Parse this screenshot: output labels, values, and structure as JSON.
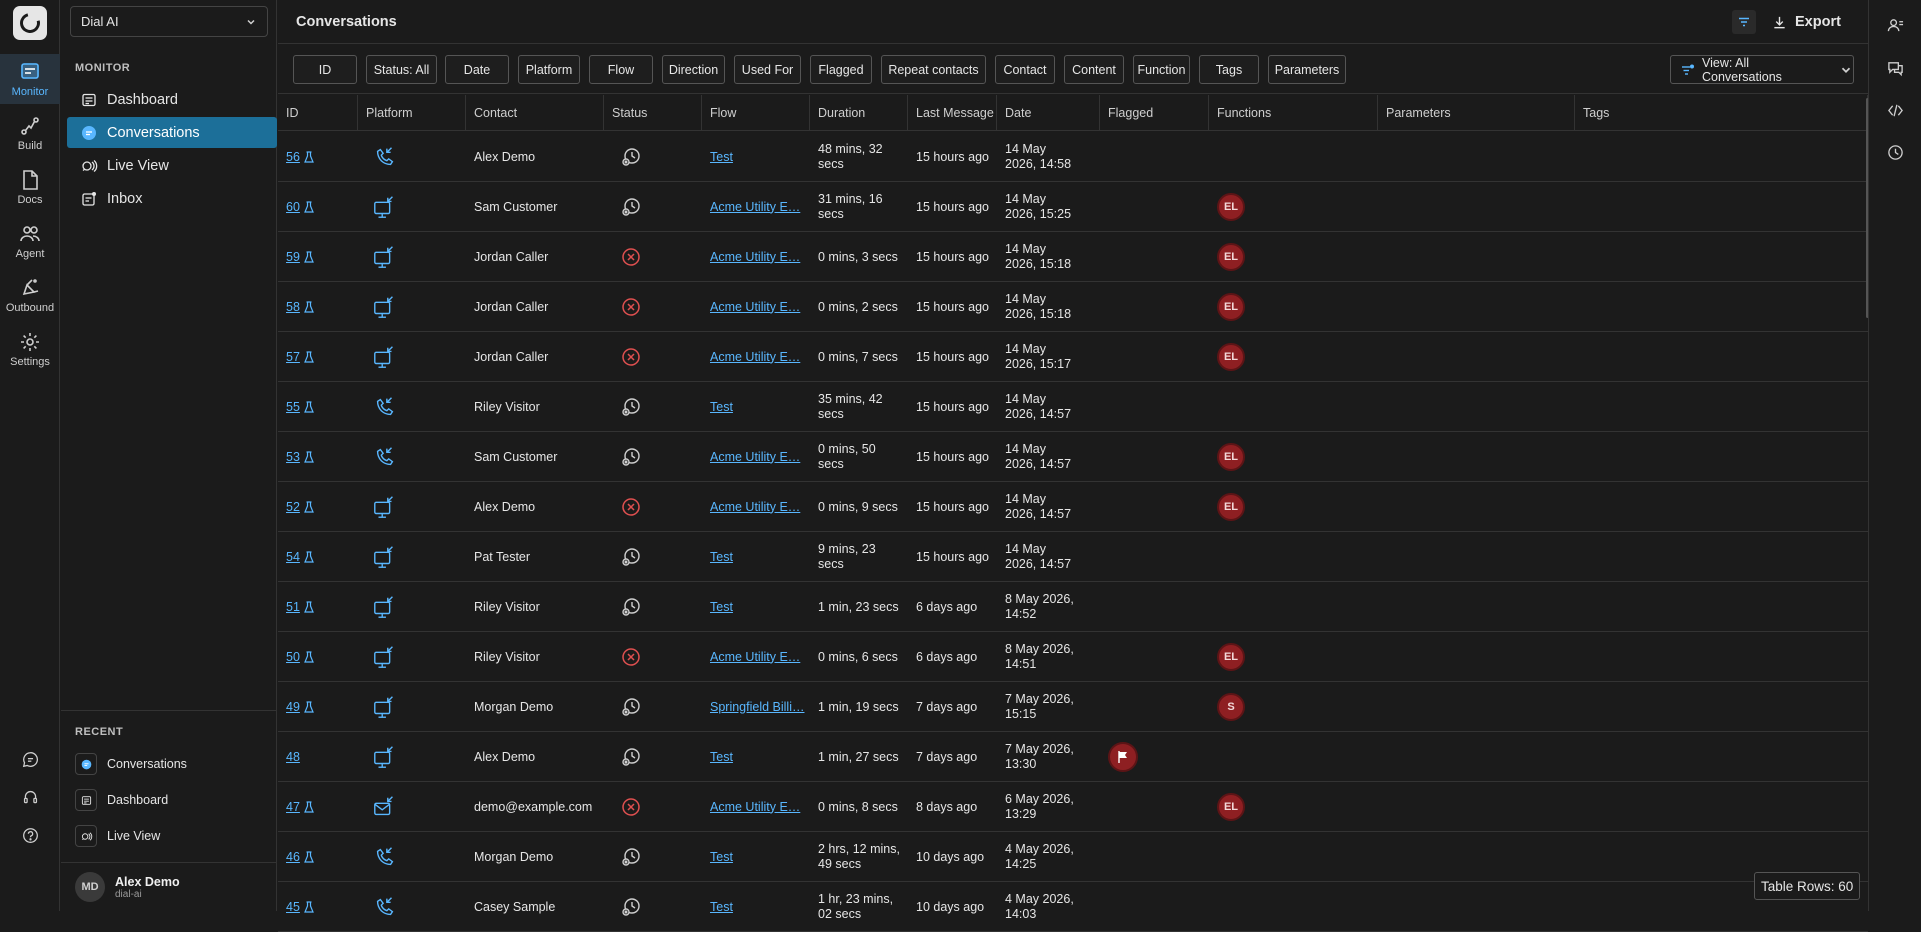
{
  "workspace": {
    "name": "Dial AI"
  },
  "rail": [
    {
      "label": "Monitor",
      "icon": "monitor-icon",
      "active": true
    },
    {
      "label": "Build",
      "icon": "build-icon"
    },
    {
      "label": "Docs",
      "icon": "docs-icon"
    },
    {
      "label": "Agent",
      "icon": "agent-icon"
    },
    {
      "label": "Outbound",
      "icon": "outbound-icon"
    },
    {
      "label": "Settings",
      "icon": "gear-icon"
    }
  ],
  "side": {
    "heading": "MONITOR",
    "nav": [
      {
        "label": "Dashboard",
        "icon": "dashboard-icon"
      },
      {
        "label": "Conversations",
        "icon": "conversations-icon",
        "active": true
      },
      {
        "label": "Live View",
        "icon": "live-view-icon"
      },
      {
        "label": "Inbox",
        "icon": "inbox-icon"
      }
    ],
    "recent_heading": "RECENT",
    "recent": [
      {
        "label": "Conversations",
        "icon": "conversations-icon"
      },
      {
        "label": "Dashboard",
        "icon": "dashboard-icon"
      },
      {
        "label": "Live View",
        "icon": "live-view-icon"
      }
    ]
  },
  "user": {
    "initials": "MD",
    "name": "Alex Demo",
    "org": "dial-ai"
  },
  "header": {
    "title": "Conversations",
    "export_label": "Export"
  },
  "filters": [
    "ID",
    "Status: All",
    "Date",
    "Platform",
    "Flow",
    "Direction",
    "Used For",
    "Flagged",
    "Repeat contacts",
    "Contact",
    "Content",
    "Function",
    "Tags",
    "Parameters"
  ],
  "view_select": "View: All Conversations",
  "columns": [
    "ID",
    "Platform",
    "Contact",
    "Status",
    "Flow",
    "Duration",
    "Last Message",
    "Date",
    "Flagged",
    "Functions",
    "Parameters",
    "Tags"
  ],
  "rows": [
    {
      "id": "56",
      "test": true,
      "platform": "phone",
      "contact": "Alex Demo",
      "status": "history",
      "flow": "Test",
      "duration": "48 mins, 32 secs",
      "last": "15 hours ago",
      "date": "14 May 2026, 14:58",
      "flagged": false,
      "function": ""
    },
    {
      "id": "60",
      "test": true,
      "platform": "web",
      "contact": "Sam Customer",
      "status": "history",
      "flow": "Acme Utility E…",
      "duration": "31 mins, 16 secs",
      "last": "15 hours ago",
      "date": "14 May 2026, 15:25",
      "flagged": false,
      "function": "EL"
    },
    {
      "id": "59",
      "test": true,
      "platform": "web",
      "contact": "Jordan Caller",
      "status": "failed",
      "flow": "Acme Utility E…",
      "duration": "0 mins, 3 secs",
      "last": "15 hours ago",
      "date": "14 May 2026, 15:18",
      "flagged": false,
      "function": "EL"
    },
    {
      "id": "58",
      "test": true,
      "platform": "web",
      "contact": "Jordan Caller",
      "status": "failed",
      "flow": "Acme Utility E…",
      "duration": "0 mins, 2 secs",
      "last": "15 hours ago",
      "date": "14 May 2026, 15:18",
      "flagged": false,
      "function": "EL"
    },
    {
      "id": "57",
      "test": true,
      "platform": "web",
      "contact": "Jordan Caller",
      "status": "failed",
      "flow": "Acme Utility E…",
      "duration": "0 mins, 7 secs",
      "last": "15 hours ago",
      "date": "14 May 2026, 15:17",
      "flagged": false,
      "function": "EL"
    },
    {
      "id": "55",
      "test": true,
      "platform": "phone",
      "contact": "Riley Visitor",
      "status": "history",
      "flow": "Test",
      "duration": "35 mins, 42 secs",
      "last": "15 hours ago",
      "date": "14 May 2026, 14:57",
      "flagged": false,
      "function": ""
    },
    {
      "id": "53",
      "test": true,
      "platform": "phone",
      "contact": "Sam Customer",
      "status": "history",
      "flow": "Acme Utility E…",
      "duration": "0 mins, 50 secs",
      "last": "15 hours ago",
      "date": "14 May 2026, 14:57",
      "flagged": false,
      "function": "EL"
    },
    {
      "id": "52",
      "test": true,
      "platform": "web",
      "contact": "Alex Demo",
      "status": "failed",
      "flow": "Acme Utility E…",
      "duration": "0 mins, 9 secs",
      "last": "15 hours ago",
      "date": "14 May 2026, 14:57",
      "flagged": false,
      "function": "EL"
    },
    {
      "id": "54",
      "test": true,
      "platform": "web",
      "contact": "Pat Tester",
      "status": "history",
      "flow": "Test",
      "duration": "9 mins, 23 secs",
      "last": "15 hours ago",
      "date": "14 May 2026, 14:57",
      "flagged": false,
      "function": ""
    },
    {
      "id": "51",
      "test": true,
      "platform": "web",
      "contact": "Riley Visitor",
      "status": "history",
      "flow": "Test",
      "duration": "1 min, 23 secs",
      "last": "6 days ago",
      "date": "8 May 2026, 14:52",
      "flagged": false,
      "function": ""
    },
    {
      "id": "50",
      "test": true,
      "platform": "web",
      "contact": "Riley Visitor",
      "status": "failed",
      "flow": "Acme Utility E…",
      "duration": "0 mins, 6 secs",
      "last": "6 days ago",
      "date": "8 May 2026, 14:51",
      "flagged": false,
      "function": "EL"
    },
    {
      "id": "49",
      "test": true,
      "platform": "web",
      "contact": "Morgan Demo",
      "status": "history",
      "flow": "Springfield Billi…",
      "duration": "1 min, 19 secs",
      "last": "7 days ago",
      "date": "7 May 2026, 15:15",
      "flagged": false,
      "function": "S"
    },
    {
      "id": "48",
      "test": false,
      "platform": "web",
      "contact": "Alex Demo",
      "status": "history",
      "flow": "Test",
      "duration": "1 min, 27 secs",
      "last": "7 days ago",
      "date": "7 May 2026, 13:30",
      "flagged": true,
      "function": ""
    },
    {
      "id": "47",
      "test": true,
      "platform": "email",
      "contact": "demo@example.com",
      "status": "failed",
      "flow": "Acme Utility E…",
      "duration": "0 mins, 8 secs",
      "last": "8 days ago",
      "date": "6 May 2026, 13:29",
      "flagged": false,
      "function": "EL"
    },
    {
      "id": "46",
      "test": true,
      "platform": "phone",
      "contact": "Morgan Demo",
      "status": "history",
      "flow": "Test",
      "duration": "2 hrs, 12 mins, 49 secs",
      "last": "10 days ago",
      "date": "4 May 2026, 14:25",
      "flagged": false,
      "function": ""
    },
    {
      "id": "45",
      "test": true,
      "platform": "phone",
      "contact": "Casey Sample",
      "status": "history",
      "flow": "Test",
      "duration": "1 hr, 23 mins, 02 secs",
      "last": "10 days ago",
      "date": "4 May 2026, 14:03",
      "flagged": false,
      "function": ""
    }
  ],
  "table_rows_label": "Table Rows: 60",
  "colors": {
    "accent": "#59b7ff",
    "active_nav": "#1c6f99",
    "badge": "#8e1f22",
    "failed": "#e05050"
  }
}
